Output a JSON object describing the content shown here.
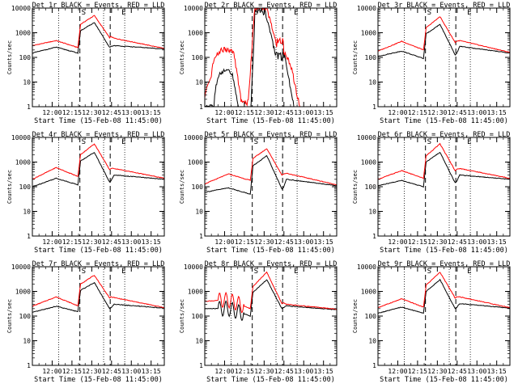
{
  "chart_data": {
    "type": "line",
    "layout": "3x3 grid",
    "ylabel": "Counts/sec",
    "xlabel": "Start Time (15-Feb-08 11:45:00)",
    "y_scale": "log",
    "ylim": [
      1,
      10000
    ],
    "y_ticks": [
      "1",
      "10",
      "100",
      "1000",
      "10000"
    ],
    "x_ticks": [
      "12:00",
      "12:15",
      "12:30",
      "12:45",
      "13:00",
      "13:15"
    ],
    "x_tick_minutes": [
      15,
      30,
      45,
      60,
      75,
      90
    ],
    "xlim_minutes": [
      0,
      100
    ],
    "interval_markers": {
      "S": "S",
      "E": "E"
    },
    "dotted_lines_minutes": [
      20,
      54,
      70,
      100
    ],
    "dashed_lines_minutes": [
      36,
      59
    ],
    "series_colors": {
      "events": "#000000",
      "lld": "#ff0000"
    },
    "panels": [
      {
        "title": "Det 1r BLACK = Events, RED = LLD",
        "kind": "normal",
        "red": [
          300,
          480,
          250,
          2200,
          5000,
          700,
          600,
          230
        ],
        "black": [
          150,
          260,
          150,
          1200,
          2600,
          280,
          300,
          220
        ]
      },
      {
        "title": "Det 2r BLACK = Events, RED = LLD",
        "kind": "det2"
      },
      {
        "title": "Det 3r BLACK = Events, RED = LLD",
        "kind": "normal",
        "red": [
          180,
          450,
          200,
          1600,
          4500,
          450,
          480,
          160
        ],
        "black": [
          110,
          180,
          90,
          900,
          2200,
          140,
          280,
          150
        ]
      },
      {
        "title": "Det 4r BLACK = Events, RED = LLD",
        "kind": "normal",
        "red": [
          200,
          600,
          260,
          2000,
          5500,
          550,
          550,
          220
        ],
        "black": [
          100,
          220,
          120,
          1100,
          2500,
          170,
          300,
          200
        ]
      },
      {
        "title": "Det 5r BLACK = Events, RED = LLD",
        "kind": "normal",
        "red": [
          130,
          330,
          180,
          1400,
          3500,
          330,
          350,
          120
        ],
        "black": [
          60,
          90,
          50,
          700,
          1800,
          90,
          200,
          110
        ]
      },
      {
        "title": "Det 6r BLACK = Events, RED = LLD",
        "kind": "normal",
        "red": [
          200,
          450,
          220,
          1800,
          5500,
          500,
          550,
          220
        ],
        "black": [
          110,
          180,
          100,
          1000,
          2500,
          160,
          300,
          200
        ]
      },
      {
        "title": "Det 7r BLACK = Events, RED = LLD",
        "kind": "normal",
        "red": [
          250,
          600,
          260,
          2000,
          4500,
          600,
          560,
          220
        ],
        "black": [
          140,
          250,
          150,
          1100,
          2300,
          220,
          300,
          210
        ]
      },
      {
        "title": "Det 8r BLACK = Events, RED = LLD",
        "kind": "det8",
        "red": [
          400,
          450,
          200,
          1600,
          6000,
          350,
          300,
          190
        ],
        "black": [
          200,
          200,
          100,
          900,
          3000,
          220,
          260,
          180
        ]
      },
      {
        "title": "Det 9r BLACK = Events, RED = LLD",
        "kind": "normal",
        "red": [
          220,
          500,
          230,
          1800,
          6000,
          600,
          600,
          220
        ],
        "black": [
          130,
          230,
          130,
          1000,
          3000,
          220,
          320,
          210
        ]
      }
    ]
  }
}
